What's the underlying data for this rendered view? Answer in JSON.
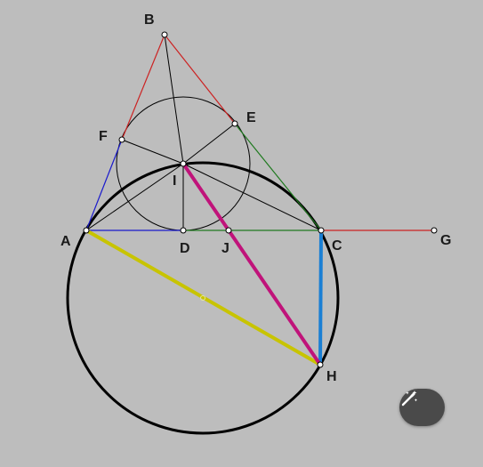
{
  "points": {
    "A": "A",
    "B": "B",
    "C": "C",
    "D": "D",
    "E": "E",
    "F": "F",
    "G": "G",
    "H": "H",
    "I": "I",
    "J": "J"
  },
  "colors": {
    "background": "#bdbdbd",
    "black": "#000000",
    "red": "#cc2222",
    "blue": "#1a1acc",
    "green": "#1f7a1f",
    "magenta": "#c0137a",
    "cyan_blue": "#1a7fd4",
    "yellow": "#c8c400",
    "button": "#4a4a4a"
  },
  "icons": {
    "magic_button": "magic-wand-icon"
  }
}
